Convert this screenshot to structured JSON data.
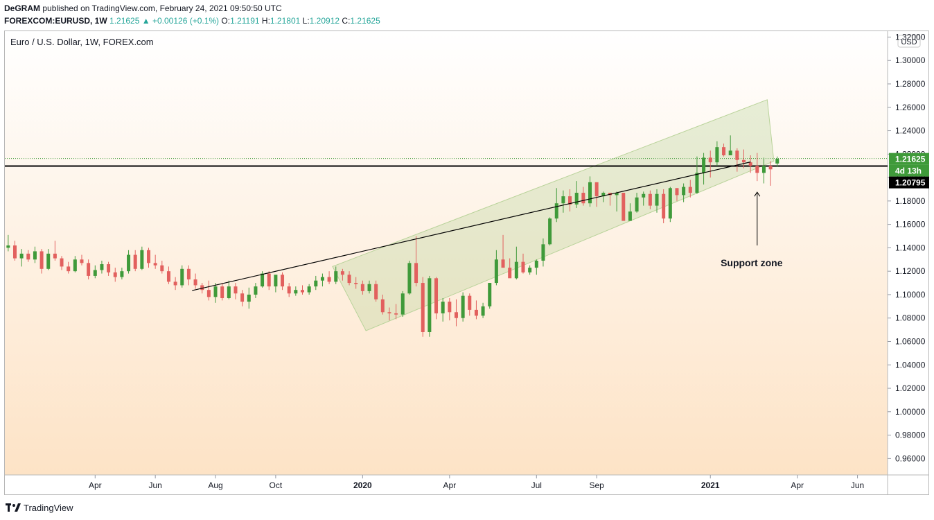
{
  "header": {
    "author": "DeGRAM",
    "published_text": "published on TradingView.com, February 24, 2021 09:50:50 UTC",
    "symbol": "FOREXCOM:EURUSD, 1W",
    "price": "1.21625",
    "change_arrow": "▲",
    "change": "+0.00126 (+0.1%)",
    "o_label": "O:",
    "o_value": "1.21191",
    "h_label": "H:",
    "h_value": "1.21801",
    "l_label": "L:",
    "l_value": "1.20912",
    "c_label": "C:",
    "c_value": "1.21625"
  },
  "footer": {
    "brand": "TradingView"
  },
  "colors": {
    "up": "#3f9a3a",
    "down": "#e2605e",
    "channel": "#b9d39a",
    "axis_text": "#131722"
  },
  "chart_data": {
    "type": "candlestick",
    "title": "Euro / U.S. Dollar, 1W, FOREX.com",
    "currency": "USD",
    "y_ticks": [
      "1.32000",
      "1.30000",
      "1.28000",
      "1.26000",
      "1.24000",
      "1.22000",
      "1.20000",
      "1.18000",
      "1.16000",
      "1.14000",
      "1.12000",
      "1.10000",
      "1.08000",
      "1.06000",
      "1.04000",
      "1.02000",
      "1.00000",
      "0.98000",
      "0.96000"
    ],
    "ylim": [
      0.946,
      1.325
    ],
    "x_ticks": [
      {
        "label": "Apr",
        "week": 13,
        "bold": false
      },
      {
        "label": "Jun",
        "week": 22,
        "bold": false
      },
      {
        "label": "Aug",
        "week": 31,
        "bold": false
      },
      {
        "label": "Oct",
        "week": 40,
        "bold": false
      },
      {
        "label": "2020",
        "week": 53,
        "bold": true
      },
      {
        "label": "Apr",
        "week": 66,
        "bold": false
      },
      {
        "label": "Jul",
        "week": 79,
        "bold": false
      },
      {
        "label": "Sep",
        "week": 88,
        "bold": false
      },
      {
        "label": "2021",
        "week": 105,
        "bold": true
      },
      {
        "label": "Apr",
        "week": 118,
        "bold": false
      },
      {
        "label": "Jun",
        "week": 127,
        "bold": false
      }
    ],
    "x_range_weeks": [
      -0.5,
      131.5
    ],
    "price_labels": [
      {
        "text": "1.21625",
        "value": 1.21625,
        "bg": "#3f9a3a",
        "color": "#ffffff"
      },
      {
        "text": "4d 13h",
        "value": 1.21085,
        "bg": "#3f9a3a",
        "color": "#ffffff"
      },
      {
        "text": "1.20795",
        "value": 1.20795,
        "bg": "#000000",
        "color": "#ffffff"
      }
    ],
    "current_price": 1.21625,
    "horizontal_line": 1.2098,
    "trendline": {
      "from": [
        27.5,
        1.1035
      ],
      "to": [
        111,
        1.2133
      ]
    },
    "channel": [
      [
        48.5,
        1.124
      ],
      [
        113.5,
        1.2665
      ],
      [
        114.5,
        1.214
      ],
      [
        53.5,
        1.0692
      ]
    ],
    "annotation": {
      "text": "Support zone",
      "arrow_week": 112,
      "arrow_from": 1.142,
      "arrow_to": 1.1875
    },
    "candles": [
      [
        1.14,
        1.151,
        1.137,
        1.142
      ],
      [
        1.142,
        1.146,
        1.129,
        1.131
      ],
      [
        1.131,
        1.139,
        1.124,
        1.135
      ],
      [
        1.135,
        1.138,
        1.128,
        1.13
      ],
      [
        1.13,
        1.141,
        1.127,
        1.137
      ],
      [
        1.137,
        1.139,
        1.118,
        1.122
      ],
      [
        1.122,
        1.139,
        1.121,
        1.135
      ],
      [
        1.135,
        1.146,
        1.129,
        1.131
      ],
      [
        1.131,
        1.133,
        1.121,
        1.124
      ],
      [
        1.124,
        1.128,
        1.118,
        1.12
      ],
      [
        1.12,
        1.133,
        1.119,
        1.13
      ],
      [
        1.13,
        1.134,
        1.125,
        1.127
      ],
      [
        1.127,
        1.13,
        1.113,
        1.116
      ],
      [
        1.116,
        1.125,
        1.114,
        1.121
      ],
      [
        1.121,
        1.129,
        1.118,
        1.126
      ],
      [
        1.126,
        1.128,
        1.116,
        1.119
      ],
      [
        1.119,
        1.123,
        1.111,
        1.115
      ],
      [
        1.115,
        1.123,
        1.113,
        1.12
      ],
      [
        1.12,
        1.138,
        1.118,
        1.134
      ],
      [
        1.134,
        1.138,
        1.12,
        1.122
      ],
      [
        1.122,
        1.141,
        1.121,
        1.138
      ],
      [
        1.138,
        1.14,
        1.123,
        1.127
      ],
      [
        1.127,
        1.134,
        1.122,
        1.125
      ],
      [
        1.125,
        1.129,
        1.118,
        1.12
      ],
      [
        1.12,
        1.124,
        1.109,
        1.111
      ],
      [
        1.111,
        1.115,
        1.104,
        1.108
      ],
      [
        1.108,
        1.125,
        1.106,
        1.122
      ],
      [
        1.122,
        1.125,
        1.108,
        1.113
      ],
      [
        1.113,
        1.118,
        1.105,
        1.108
      ],
      [
        1.108,
        1.11,
        1.101,
        1.104
      ],
      [
        1.104,
        1.112,
        1.095,
        1.098
      ],
      [
        1.098,
        1.11,
        1.093,
        1.107
      ],
      [
        1.107,
        1.11,
        1.095,
        1.097
      ],
      [
        1.097,
        1.112,
        1.096,
        1.107
      ],
      [
        1.107,
        1.11,
        1.096,
        1.101
      ],
      [
        1.101,
        1.104,
        1.09,
        1.094
      ],
      [
        1.094,
        1.106,
        1.088,
        1.1
      ],
      [
        1.1,
        1.11,
        1.097,
        1.107
      ],
      [
        1.107,
        1.12,
        1.106,
        1.118
      ],
      [
        1.118,
        1.12,
        1.104,
        1.107
      ],
      [
        1.107,
        1.115,
        1.102,
        1.117
      ],
      [
        1.117,
        1.119,
        1.104,
        1.107
      ],
      [
        1.107,
        1.11,
        1.098,
        1.101
      ],
      [
        1.101,
        1.107,
        1.099,
        1.104
      ],
      [
        1.104,
        1.108,
        1.1,
        1.102
      ],
      [
        1.102,
        1.109,
        1.1,
        1.107
      ],
      [
        1.107,
        1.116,
        1.104,
        1.112
      ],
      [
        1.112,
        1.118,
        1.107,
        1.115
      ],
      [
        1.115,
        1.12,
        1.109,
        1.111
      ],
      [
        1.111,
        1.124,
        1.109,
        1.12
      ],
      [
        1.12,
        1.122,
        1.112,
        1.117
      ],
      [
        1.117,
        1.12,
        1.108,
        1.11
      ],
      [
        1.11,
        1.115,
        1.105,
        1.109
      ],
      [
        1.109,
        1.112,
        1.1,
        1.103
      ],
      [
        1.103,
        1.112,
        1.101,
        1.109
      ],
      [
        1.109,
        1.112,
        1.094,
        1.096
      ],
      [
        1.096,
        1.1,
        1.083,
        1.085
      ],
      [
        1.085,
        1.089,
        1.078,
        1.084
      ],
      [
        1.084,
        1.092,
        1.079,
        1.083
      ],
      [
        1.083,
        1.103,
        1.081,
        1.101
      ],
      [
        1.101,
        1.129,
        1.1,
        1.127
      ],
      [
        1.127,
        1.15,
        1.107,
        1.11
      ],
      [
        1.11,
        1.115,
        1.064,
        1.068
      ],
      [
        1.068,
        1.116,
        1.064,
        1.114
      ],
      [
        1.114,
        1.115,
        1.079,
        1.084
      ],
      [
        1.084,
        1.097,
        1.077,
        1.094
      ],
      [
        1.094,
        1.097,
        1.078,
        1.085
      ],
      [
        1.085,
        1.096,
        1.073,
        1.08
      ],
      [
        1.08,
        1.102,
        1.077,
        1.099
      ],
      [
        1.099,
        1.101,
        1.082,
        1.087
      ],
      [
        1.087,
        1.095,
        1.079,
        1.082
      ],
      [
        1.082,
        1.093,
        1.08,
        1.09
      ],
      [
        1.09,
        1.11,
        1.088,
        1.11
      ],
      [
        1.11,
        1.138,
        1.108,
        1.13
      ],
      [
        1.13,
        1.151,
        1.123,
        1.123
      ],
      [
        1.123,
        1.131,
        1.116,
        1.114
      ],
      [
        1.114,
        1.141,
        1.113,
        1.128
      ],
      [
        1.128,
        1.135,
        1.118,
        1.119
      ],
      [
        1.119,
        1.125,
        1.117,
        1.123
      ],
      [
        1.123,
        1.13,
        1.117,
        1.129
      ],
      [
        1.129,
        1.148,
        1.124,
        1.143
      ],
      [
        1.143,
        1.166,
        1.142,
        1.165
      ],
      [
        1.165,
        1.191,
        1.162,
        1.178
      ],
      [
        1.178,
        1.189,
        1.17,
        1.184
      ],
      [
        1.184,
        1.19,
        1.171,
        1.177
      ],
      [
        1.177,
        1.197,
        1.174,
        1.187
      ],
      [
        1.187,
        1.192,
        1.176,
        1.178
      ],
      [
        1.178,
        1.201,
        1.175,
        1.196
      ],
      [
        1.196,
        1.196,
        1.175,
        1.184
      ],
      [
        1.184,
        1.188,
        1.179,
        1.187
      ],
      [
        1.187,
        1.187,
        1.176,
        1.185
      ],
      [
        1.185,
        1.188,
        1.171,
        1.187
      ],
      [
        1.187,
        1.185,
        1.163,
        1.163
      ],
      [
        1.163,
        1.178,
        1.164,
        1.171
      ],
      [
        1.171,
        1.187,
        1.17,
        1.183
      ],
      [
        1.183,
        1.188,
        1.176,
        1.186
      ],
      [
        1.186,
        1.189,
        1.173,
        1.176
      ],
      [
        1.176,
        1.19,
        1.17,
        1.186
      ],
      [
        1.186,
        1.19,
        1.161,
        1.165
      ],
      [
        1.165,
        1.192,
        1.162,
        1.191
      ],
      [
        1.191,
        1.191,
        1.18,
        1.185
      ],
      [
        1.185,
        1.195,
        1.179,
        1.192
      ],
      [
        1.192,
        1.198,
        1.183,
        1.187
      ],
      [
        1.187,
        1.218,
        1.186,
        1.204
      ],
      [
        1.204,
        1.221,
        1.194,
        1.217
      ],
      [
        1.217,
        1.223,
        1.2,
        1.213
      ],
      [
        1.213,
        1.231,
        1.21,
        1.226
      ],
      [
        1.226,
        1.229,
        1.218,
        1.219
      ],
      [
        1.219,
        1.236,
        1.222,
        1.223
      ],
      [
        1.223,
        1.225,
        1.205,
        1.215
      ],
      [
        1.215,
        1.224,
        1.208,
        1.213
      ],
      [
        1.213,
        1.219,
        1.204,
        1.21
      ],
      [
        1.21,
        1.221,
        1.197,
        1.204
      ],
      [
        1.204,
        1.217,
        1.195,
        1.21
      ],
      [
        1.21,
        1.214,
        1.193,
        1.207
      ],
      [
        1.212,
        1.218,
        1.209,
        1.216
      ]
    ]
  }
}
